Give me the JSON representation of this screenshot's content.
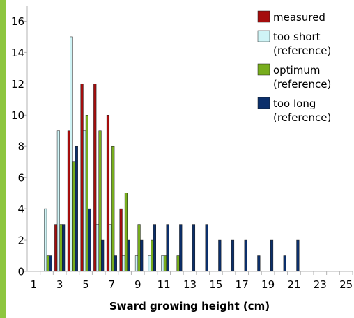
{
  "chart_data": {
    "type": "bar",
    "xlabel": "Sward growing height (cm)",
    "ylabel": "",
    "ylim": [
      0,
      17
    ],
    "y_ticks": [
      0,
      2,
      4,
      6,
      8,
      10,
      12,
      14,
      16
    ],
    "x_tick_labels": [
      "1",
      "3",
      "5",
      "7",
      "9",
      "11",
      "13",
      "15",
      "17",
      "19",
      "21",
      "23",
      "25"
    ],
    "x": [
      1,
      2,
      3,
      4,
      5,
      6,
      7,
      8,
      9,
      10,
      11,
      12,
      13,
      14,
      15,
      16,
      17,
      18,
      19,
      20,
      21,
      22,
      23,
      24,
      25
    ],
    "grid": false,
    "legend_position": "top-right",
    "series": [
      {
        "name": "measured",
        "color": "#a50d0d",
        "values": [
          0,
          0,
          3,
          9,
          12,
          12,
          10,
          4,
          0,
          0,
          0,
          0,
          0,
          0,
          0,
          0,
          0,
          0,
          0,
          0,
          0,
          0,
          0,
          0,
          0
        ]
      },
      {
        "name": "too short\n(reference)",
        "color": "#cff4f6",
        "values": [
          0,
          4,
          9,
          15,
          9,
          3,
          3,
          1,
          1,
          1,
          1,
          0,
          0,
          0,
          0,
          0,
          0,
          0,
          0,
          0,
          0,
          0,
          0,
          0,
          0
        ]
      },
      {
        "name": "optimum\n(reference)",
        "color": "#77ad1d",
        "values": [
          0,
          1,
          3,
          7,
          10,
          9,
          8,
          5,
          3,
          2,
          1,
          1,
          0,
          0,
          0,
          0,
          0,
          0,
          0,
          0,
          0,
          0,
          0,
          0,
          0
        ]
      },
      {
        "name": "too long\n(reference)",
        "color": "#0b2f6b",
        "values": [
          0,
          1,
          3,
          8,
          4,
          2,
          1,
          2,
          2,
          3,
          3,
          3,
          3,
          3,
          2,
          2,
          2,
          1,
          2,
          1,
          2,
          0,
          0,
          0,
          0
        ]
      }
    ]
  }
}
